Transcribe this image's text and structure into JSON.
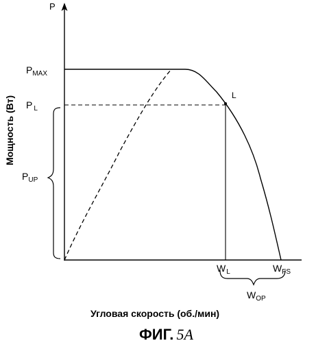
{
  "figure": {
    "caption_prefix": "ФИГ.",
    "caption_number": "5A"
  },
  "axes": {
    "y_axis_symbol": "P",
    "y_axis_title": "Мощность (Вт)",
    "x_axis_title": "Угловая скорость (об./мин)"
  },
  "labels": {
    "p_max_main": "P",
    "p_max_sub": "MAX",
    "p_l_main": "P",
    "p_l_sub": "L",
    "p_up_main": "P",
    "p_up_sub": "UP",
    "point_l": "L",
    "w_l_main": "W",
    "w_l_sub": "L",
    "w_fs_main": "W",
    "w_fs_sub": "FS",
    "w_op_main": "W",
    "w_op_sub": "OP"
  },
  "colors": {
    "ink": "#000000",
    "background": "#ffffff"
  }
}
